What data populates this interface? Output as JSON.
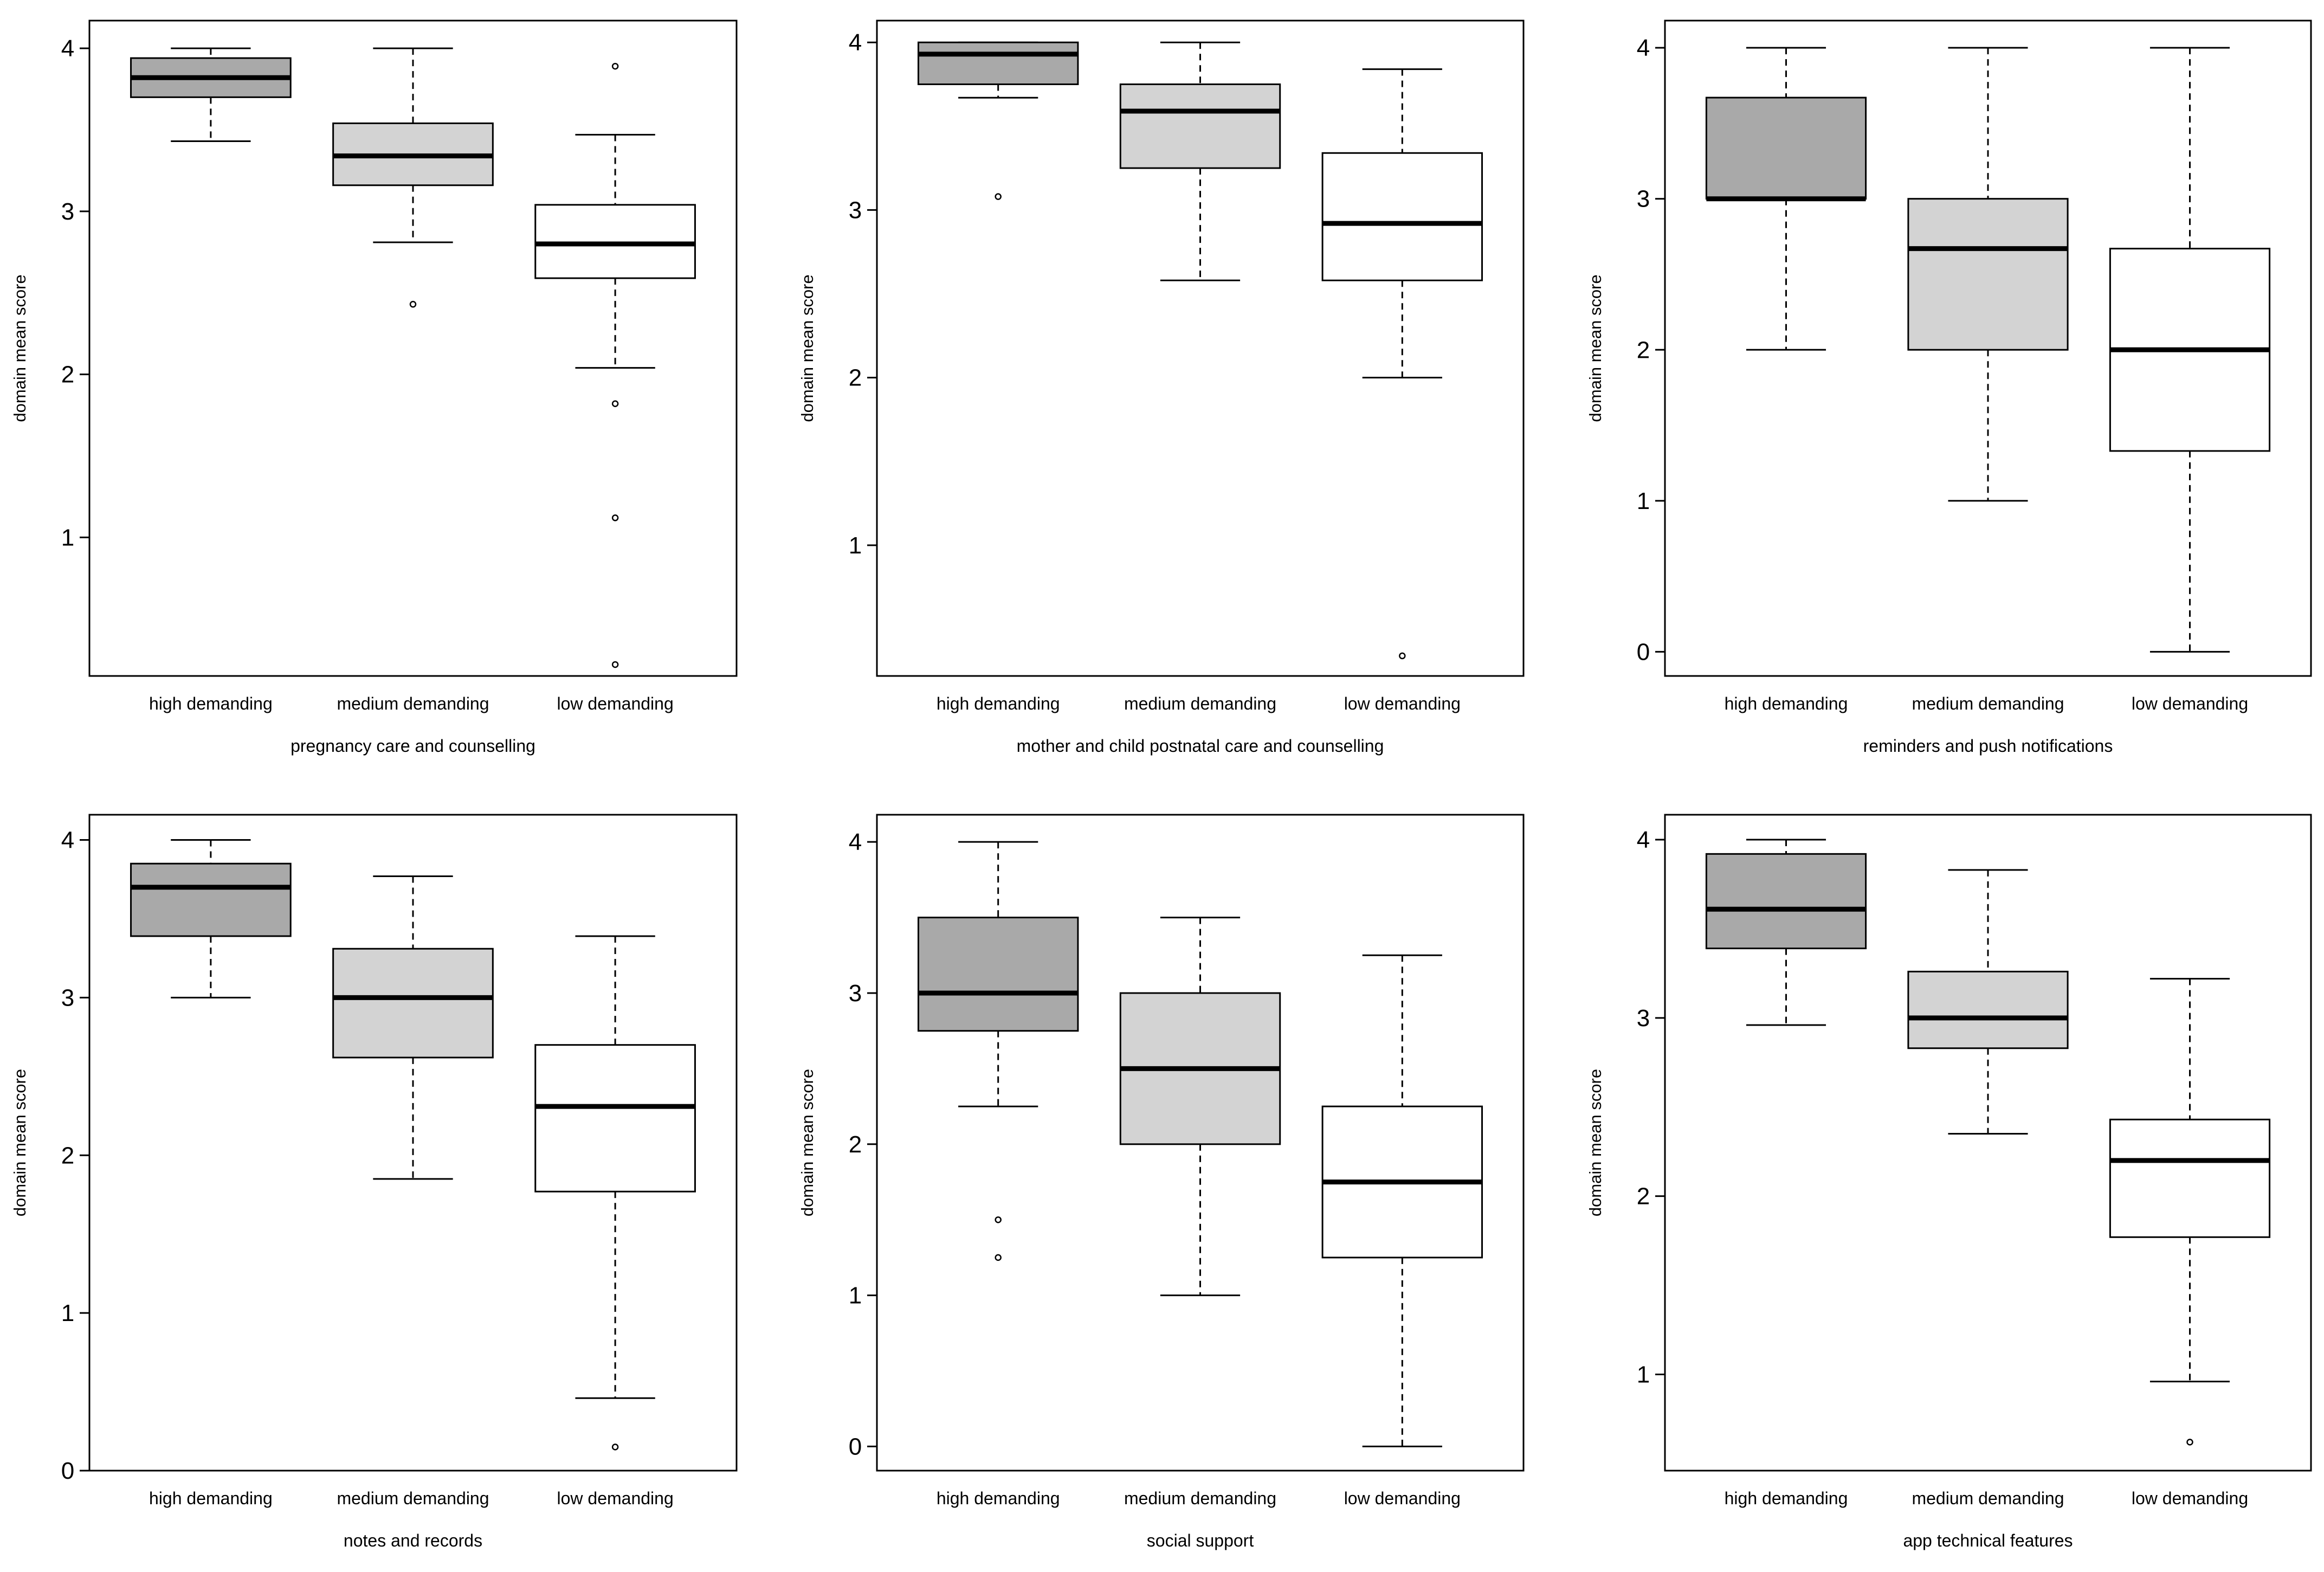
{
  "figure": {
    "type": "box-plot-grid",
    "rows": 2,
    "cols": 3
  },
  "colors": {
    "high": "#a9a9a9",
    "medium": "#d3d3d3",
    "low": "#ffffff",
    "stroke": "#000000"
  },
  "chart_data": [
    {
      "type": "box",
      "title": "",
      "xlabel": "pregnancy care and counselling",
      "ylabel": "domain mean score",
      "ylim": [
        0.15,
        4.17
      ],
      "yticks": [
        1,
        2,
        3,
        4
      ],
      "categories": [
        "high demanding",
        "medium demanding",
        "low demanding"
      ],
      "boxes": [
        {
          "min": 3.43,
          "q1": 3.7,
          "median": 3.82,
          "q3": 3.94,
          "max": 4.0,
          "outliers": []
        },
        {
          "min": 2.81,
          "q1": 3.16,
          "median": 3.34,
          "q3": 3.54,
          "max": 4.0,
          "outliers": [
            2.43
          ]
        },
        {
          "min": 2.04,
          "q1": 2.59,
          "median": 2.8,
          "q3": 3.04,
          "max": 3.47,
          "outliers": [
            3.89,
            1.82,
            1.12,
            0.22
          ]
        }
      ]
    },
    {
      "type": "box",
      "title": "",
      "xlabel": "mother and child postnatal care and counselling",
      "ylabel": "domain mean score",
      "ylim": [
        0.22,
        4.13
      ],
      "yticks": [
        1,
        2,
        3,
        4
      ],
      "categories": [
        "high demanding",
        "medium demanding",
        "low demanding"
      ],
      "boxes": [
        {
          "min": 3.67,
          "q1": 3.75,
          "median": 3.93,
          "q3": 4.0,
          "max": 4.0,
          "outliers": [
            3.08
          ]
        },
        {
          "min": 2.58,
          "q1": 3.25,
          "median": 3.59,
          "q3": 3.75,
          "max": 4.0,
          "outliers": []
        },
        {
          "min": 2.0,
          "q1": 2.58,
          "median": 2.92,
          "q3": 3.34,
          "max": 3.84,
          "outliers": [
            0.34
          ]
        }
      ]
    },
    {
      "type": "box",
      "title": "",
      "xlabel": "reminders and push notifications",
      "ylabel": "domain mean score",
      "ylim": [
        -0.16,
        4.18
      ],
      "yticks": [
        0,
        1,
        2,
        3,
        4
      ],
      "categories": [
        "high demanding",
        "medium demanding",
        "low demanding"
      ],
      "boxes": [
        {
          "min": 2.0,
          "q1": 3.0,
          "median": 3.0,
          "q3": 3.67,
          "max": 4.0,
          "outliers": []
        },
        {
          "min": 1.0,
          "q1": 2.0,
          "median": 2.67,
          "q3": 3.0,
          "max": 4.0,
          "outliers": []
        },
        {
          "min": 0.0,
          "q1": 1.33,
          "median": 2.0,
          "q3": 2.67,
          "max": 4.0,
          "outliers": []
        }
      ]
    },
    {
      "type": "box",
      "title": "",
      "xlabel": "notes and records",
      "ylabel": "domain mean score",
      "ylim": [
        0.0,
        4.16
      ],
      "yticks": [
        0,
        1,
        2,
        3,
        4
      ],
      "categories": [
        "high demanding",
        "medium demanding",
        "low demanding"
      ],
      "boxes": [
        {
          "min": 3.0,
          "q1": 3.39,
          "median": 3.7,
          "q3": 3.85,
          "max": 4.0,
          "outliers": []
        },
        {
          "min": 1.85,
          "q1": 2.62,
          "median": 3.0,
          "q3": 3.31,
          "max": 3.77,
          "outliers": []
        },
        {
          "min": 0.46,
          "q1": 1.77,
          "median": 2.31,
          "q3": 2.7,
          "max": 3.39,
          "outliers": [
            0.15
          ]
        }
      ]
    },
    {
      "type": "box",
      "title": "",
      "xlabel": "social support",
      "ylabel": "domain mean score",
      "ylim": [
        -0.16,
        4.18
      ],
      "yticks": [
        0,
        1,
        2,
        3,
        4
      ],
      "categories": [
        "high demanding",
        "medium demanding",
        "low demanding"
      ],
      "boxes": [
        {
          "min": 2.25,
          "q1": 2.75,
          "median": 3.0,
          "q3": 3.5,
          "max": 4.0,
          "outliers": [
            1.5,
            1.25
          ]
        },
        {
          "min": 1.0,
          "q1": 2.0,
          "median": 2.5,
          "q3": 3.0,
          "max": 3.5,
          "outliers": []
        },
        {
          "min": 0.0,
          "q1": 1.25,
          "median": 1.75,
          "q3": 2.25,
          "max": 3.25,
          "outliers": []
        }
      ]
    },
    {
      "type": "box",
      "title": "",
      "xlabel": "app technical features",
      "ylabel": "domain mean score",
      "ylim": [
        0.46,
        4.14
      ],
      "yticks": [
        1,
        2,
        3,
        4
      ],
      "categories": [
        "high demanding",
        "medium demanding",
        "low demanding"
      ],
      "boxes": [
        {
          "min": 2.96,
          "q1": 3.39,
          "median": 3.61,
          "q3": 3.92,
          "max": 4.0,
          "outliers": []
        },
        {
          "min": 2.35,
          "q1": 2.83,
          "median": 3.0,
          "q3": 3.26,
          "max": 3.83,
          "outliers": []
        },
        {
          "min": 0.96,
          "q1": 1.77,
          "median": 2.2,
          "q3": 2.43,
          "max": 3.22,
          "outliers": [
            0.62
          ]
        }
      ]
    }
  ]
}
